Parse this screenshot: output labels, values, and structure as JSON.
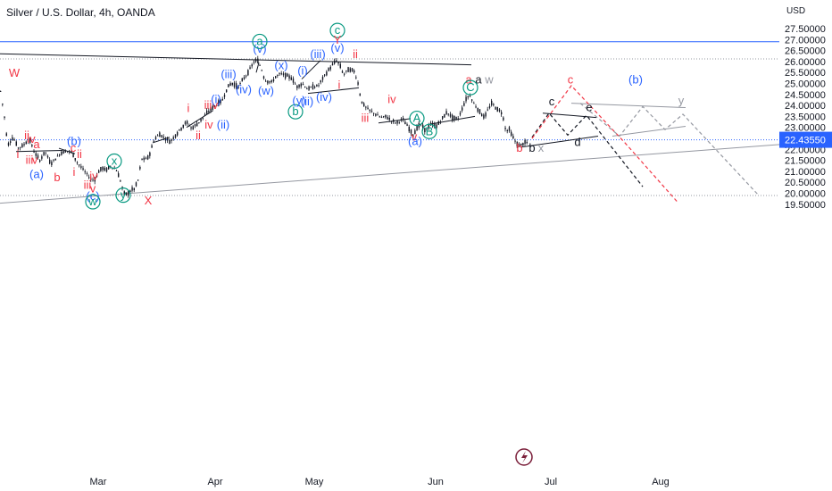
{
  "header": {
    "title": "Silver / U.S. Dollar, 4h, OANDA"
  },
  "chart_data": {
    "type": "candlestick",
    "currency": "USD",
    "ylim": [
      19.45,
      27.7
    ],
    "y_ticks": [
      "27.50000",
      "27.00000",
      "26.50000",
      "26.00000",
      "25.50000",
      "25.00000",
      "24.50000",
      "24.00000",
      "23.50000",
      "23.00000",
      "22.50000",
      "22.00000",
      "21.50000",
      "21.00000",
      "20.50000",
      "20.00000",
      "19.50000"
    ],
    "x_ticks": [
      "Mar",
      "Apr",
      "May",
      "Jun",
      "Jul",
      "Aug"
    ],
    "last_price": "22.43550",
    "last_price_value": 22.4355,
    "horizontal_lines": [
      {
        "value": 26.9,
        "color": "#2962ff"
      },
      {
        "value": 26.12,
        "color": "#9598a1",
        "style": "dotted"
      },
      {
        "value": 19.9,
        "color": "#9598a1",
        "style": "dotted"
      }
    ],
    "colors": {
      "up": "#131722",
      "down": "#131722",
      "blue": "#2962ff",
      "red": "#f23645",
      "green": "#089981",
      "grey": "#9598a1",
      "dark": "#131722"
    },
    "price_path": [
      [
        0,
        24.65
      ],
      [
        4,
        23.6
      ],
      [
        8,
        22.2
      ],
      [
        14,
        22.55
      ],
      [
        20,
        22.05
      ],
      [
        26,
        22.2
      ],
      [
        32,
        22.5
      ],
      [
        38,
        21.85
      ],
      [
        44,
        21.5
      ],
      [
        50,
        21.9
      ],
      [
        56,
        21.35
      ],
      [
        62,
        21.6
      ],
      [
        68,
        21.85
      ],
      [
        74,
        21.95
      ],
      [
        80,
        21.85
      ],
      [
        86,
        21.4
      ],
      [
        92,
        21.1
      ],
      [
        98,
        20.8
      ],
      [
        102,
        20.6
      ],
      [
        106,
        20.65
      ],
      [
        110,
        21.0
      ],
      [
        114,
        21.15
      ],
      [
        118,
        21.05
      ],
      [
        124,
        21.25
      ],
      [
        130,
        21.05
      ],
      [
        134,
        20.6
      ],
      [
        138,
        20.0
      ],
      [
        142,
        19.95
      ],
      [
        146,
        20.15
      ],
      [
        150,
        20.2
      ],
      [
        154,
        20.6
      ],
      [
        158,
        21.55
      ],
      [
        162,
        21.55
      ],
      [
        166,
        21.65
      ],
      [
        172,
        22.45
      ],
      [
        178,
        22.7
      ],
      [
        184,
        22.5
      ],
      [
        190,
        22.35
      ],
      [
        196,
        22.65
      ],
      [
        202,
        22.95
      ],
      [
        208,
        23.25
      ],
      [
        214,
        22.95
      ],
      [
        220,
        23.15
      ],
      [
        226,
        23.4
      ],
      [
        232,
        23.7
      ],
      [
        238,
        23.9
      ],
      [
        244,
        24.1
      ],
      [
        248,
        24.2
      ],
      [
        252,
        24.6
      ],
      [
        256,
        24.95
      ],
      [
        260,
        25.0
      ],
      [
        266,
        24.85
      ],
      [
        272,
        25.2
      ],
      [
        278,
        25.55
      ],
      [
        284,
        26.0
      ],
      [
        288,
        26.05
      ],
      [
        292,
        25.7
      ],
      [
        296,
        25.15
      ],
      [
        300,
        25.1
      ],
      [
        304,
        25.05
      ],
      [
        308,
        25.3
      ],
      [
        314,
        25.45
      ],
      [
        320,
        25.35
      ],
      [
        326,
        25.25
      ],
      [
        332,
        24.85
      ],
      [
        338,
        25.0
      ],
      [
        344,
        24.75
      ],
      [
        350,
        24.85
      ],
      [
        356,
        24.9
      ],
      [
        362,
        25.3
      ],
      [
        368,
        25.65
      ],
      [
        372,
        25.85
      ],
      [
        376,
        26.05
      ],
      [
        380,
        25.85
      ],
      [
        384,
        25.4
      ],
      [
        390,
        25.65
      ],
      [
        396,
        25.55
      ],
      [
        400,
        25.1
      ],
      [
        404,
        24.2
      ],
      [
        408,
        23.95
      ],
      [
        414,
        23.75
      ],
      [
        420,
        23.6
      ],
      [
        426,
        23.45
      ],
      [
        432,
        23.5
      ],
      [
        438,
        23.3
      ],
      [
        444,
        23.2
      ],
      [
        450,
        23.4
      ],
      [
        456,
        23.05
      ],
      [
        462,
        22.65
      ],
      [
        466,
        22.95
      ],
      [
        470,
        23.15
      ],
      [
        476,
        22.85
      ],
      [
        482,
        23.15
      ],
      [
        488,
        23.05
      ],
      [
        494,
        23.35
      ],
      [
        500,
        23.7
      ],
      [
        506,
        23.45
      ],
      [
        512,
        23.35
      ],
      [
        518,
        23.95
      ],
      [
        522,
        24.35
      ],
      [
        526,
        24.45
      ],
      [
        530,
        24.1
      ],
      [
        536,
        23.75
      ],
      [
        542,
        23.45
      ],
      [
        546,
        23.8
      ],
      [
        550,
        24.1
      ],
      [
        556,
        23.85
      ],
      [
        562,
        23.65
      ],
      [
        566,
        22.85
      ],
      [
        570,
        22.9
      ],
      [
        574,
        22.55
      ],
      [
        578,
        22.25
      ],
      [
        582,
        22.15
      ],
      [
        586,
        22.3
      ],
      [
        590,
        22.3
      ]
    ],
    "trendlines": [
      {
        "from": [
          0,
          26.35
        ],
        "to": [
          528,
          25.85
        ],
        "color": "#131722"
      },
      {
        "from": [
          0,
          19.55
        ],
        "to": [
          932,
          22.4
        ],
        "color": "#9598a1"
      },
      {
        "from": [
          18,
          21.9
        ],
        "to": [
          70,
          21.95
        ],
        "color": "#131722"
      },
      {
        "from": [
          66,
          22.05
        ],
        "to": [
          84,
          21.8
        ],
        "color": "#131722"
      },
      {
        "from": [
          171,
          22.3
        ],
        "to": [
          190,
          22.55
        ],
        "color": "#131722"
      },
      {
        "from": [
          209,
          23.0
        ],
        "to": [
          238,
          23.75
        ],
        "color": "#131722"
      },
      {
        "from": [
          287,
          25.5
        ],
        "to": [
          290,
          25.95
        ],
        "color": "#131722"
      },
      {
        "from": [
          338,
          25.2
        ],
        "to": [
          359,
          26.05
        ],
        "color": "#131722"
      },
      {
        "from": [
          345,
          24.55
        ],
        "to": [
          402,
          24.8
        ],
        "color": "#131722"
      },
      {
        "from": [
          424,
          23.2
        ],
        "to": [
          460,
          23.4
        ],
        "color": "#131722"
      },
      {
        "from": [
          482,
          23.15
        ],
        "to": [
          532,
          23.5
        ],
        "color": "#131722"
      },
      {
        "from": [
          583,
          22.1
        ],
        "to": [
          670,
          22.6
        ],
        "color": "#131722"
      },
      {
        "from": [
          608,
          23.65
        ],
        "to": [
          668,
          23.45
        ],
        "color": "#131722"
      },
      {
        "from": [
          640,
          24.1
        ],
        "to": [
          768,
          23.9
        ],
        "color": "#9598a1"
      },
      {
        "from": [
          686,
          22.6
        ],
        "to": [
          768,
          23.05
        ],
        "color": "#9598a1"
      }
    ],
    "projections": [
      {
        "points": [
          [
            596,
            22.55
          ],
          [
            615,
            23.65
          ],
          [
            636,
            22.65
          ],
          [
            657,
            23.55
          ],
          [
            720,
            20.3
          ]
        ],
        "color": "#131722",
        "dash": "4 3"
      },
      {
        "points": [
          [
            596,
            22.5
          ],
          [
            640,
            24.9
          ],
          [
            700,
            22.3
          ],
          [
            760,
            19.55
          ]
        ],
        "color": "#f23645",
        "dash": "4 3"
      },
      {
        "points": [
          [
            650,
            24.1
          ],
          [
            694,
            22.6
          ],
          [
            720,
            23.95
          ],
          [
            745,
            22.9
          ],
          [
            765,
            23.6
          ],
          [
            850,
            19.9
          ]
        ],
        "color": "#9598a1",
        "dash": "4 3"
      }
    ],
    "annotations": [
      {
        "text": "W",
        "x": 16,
        "v": 25.3,
        "c": "red"
      },
      {
        "text": "ii",
        "x": 30,
        "v": 22.45,
        "c": "red"
      },
      {
        "text": "iv",
        "x": 35,
        "v": 22.3,
        "c": "red"
      },
      {
        "text": "a",
        "x": 41,
        "v": 22.05,
        "c": "red"
      },
      {
        "text": "i",
        "x": 20,
        "v": 21.6,
        "c": "red"
      },
      {
        "text": "iii",
        "x": 33,
        "v": 21.35,
        "c": "red"
      },
      {
        "text": "v",
        "x": 39,
        "v": 21.35,
        "c": "red"
      },
      {
        "text": "(a)",
        "x": 41,
        "v": 20.7,
        "c": "blue"
      },
      {
        "text": "b",
        "x": 64,
        "v": 20.55,
        "c": "red"
      },
      {
        "text": "(b)",
        "x": 83,
        "v": 22.2,
        "c": "blue"
      },
      {
        "text": "c",
        "x": 82,
        "v": 21.9,
        "c": "red"
      },
      {
        "text": "ii",
        "x": 89,
        "v": 21.6,
        "c": "red"
      },
      {
        "text": "i",
        "x": 83,
        "v": 20.8,
        "c": "red"
      },
      {
        "text": "iv",
        "x": 105,
        "v": 20.6,
        "c": "red"
      },
      {
        "text": "iii",
        "x": 98,
        "v": 20.2,
        "c": "red"
      },
      {
        "text": "v",
        "x": 104,
        "v": 20.05,
        "c": "red"
      },
      {
        "text": "(c)",
        "x": 104,
        "v": 19.7,
        "c": "blue"
      },
      {
        "text": "w",
        "x": 104,
        "v": 19.45,
        "c": "green",
        "circle": true
      },
      {
        "text": "x",
        "x": 128,
        "v": 21.3,
        "c": "green",
        "circle": true
      },
      {
        "text": "y",
        "x": 138,
        "v": 19.75,
        "c": "green",
        "circle": true
      },
      {
        "text": "X",
        "x": 166,
        "v": 19.5,
        "c": "red"
      },
      {
        "text": "i",
        "x": 211,
        "v": 23.7,
        "c": "red"
      },
      {
        "text": "iii",
        "x": 233,
        "v": 23.85,
        "c": "red"
      },
      {
        "text": "v",
        "x": 241,
        "v": 23.85,
        "c": "red"
      },
      {
        "text": "iv",
        "x": 234,
        "v": 22.95,
        "c": "red"
      },
      {
        "text": "ii",
        "x": 222,
        "v": 22.45,
        "c": "red"
      },
      {
        "text": "(i)",
        "x": 242,
        "v": 24.1,
        "c": "blue"
      },
      {
        "text": "(ii)",
        "x": 250,
        "v": 22.95,
        "c": "blue"
      },
      {
        "text": "(iii)",
        "x": 256,
        "v": 25.25,
        "c": "blue"
      },
      {
        "text": "(iv)",
        "x": 273,
        "v": 24.55,
        "c": "blue"
      },
      {
        "text": "(v)",
        "x": 291,
        "v": 26.4,
        "c": "blue"
      },
      {
        "text": "a",
        "x": 291,
        "v": 26.75,
        "c": "green",
        "circle": true
      },
      {
        "text": "(w)",
        "x": 298,
        "v": 24.5,
        "c": "blue"
      },
      {
        "text": "(x)",
        "x": 315,
        "v": 25.65,
        "c": "blue"
      },
      {
        "text": "b",
        "x": 331,
        "v": 23.55,
        "c": "green",
        "circle": true
      },
      {
        "text": "(y)",
        "x": 335,
        "v": 24.05,
        "c": "blue"
      },
      {
        "text": "(ii)",
        "x": 344,
        "v": 24.0,
        "c": "blue"
      },
      {
        "text": "(i)",
        "x": 339,
        "v": 25.4,
        "c": "blue"
      },
      {
        "text": "(iii)",
        "x": 356,
        "v": 26.15,
        "c": "blue"
      },
      {
        "text": "(iv)",
        "x": 363,
        "v": 24.2,
        "c": "blue"
      },
      {
        "text": "(v)",
        "x": 378,
        "v": 26.45,
        "c": "blue"
      },
      {
        "text": "c",
        "x": 378,
        "v": 27.25,
        "c": "green",
        "circle": true
      },
      {
        "text": "Y",
        "x": 378,
        "v": 26.8,
        "c": "red"
      },
      {
        "text": "ii",
        "x": 398,
        "v": 26.15,
        "c": "red"
      },
      {
        "text": "i",
        "x": 380,
        "v": 24.75,
        "c": "red"
      },
      {
        "text": "iv",
        "x": 439,
        "v": 24.1,
        "c": "red"
      },
      {
        "text": "iii",
        "x": 409,
        "v": 23.25,
        "c": "red"
      },
      {
        "text": "A",
        "x": 467,
        "v": 23.25,
        "c": "green",
        "circle": true
      },
      {
        "text": "B",
        "x": 481,
        "v": 22.65,
        "c": "green",
        "circle": true
      },
      {
        "text": "v",
        "x": 464,
        "v": 22.4,
        "c": "red"
      },
      {
        "text": "(a)",
        "x": 465,
        "v": 22.2,
        "c": "blue"
      },
      {
        "text": "a",
        "x": 525,
        "v": 25.0,
        "c": "red"
      },
      {
        "text": "a",
        "x": 536,
        "v": 25.0,
        "c": "dark"
      },
      {
        "text": "w",
        "x": 548,
        "v": 25.0,
        "c": "grey"
      },
      {
        "text": "C",
        "x": 527,
        "v": 24.65,
        "c": "green",
        "circle": true
      },
      {
        "text": "c",
        "x": 618,
        "v": 24.0,
        "c": "dark"
      },
      {
        "text": "c",
        "x": 639,
        "v": 25.0,
        "c": "red"
      },
      {
        "text": "(b)",
        "x": 712,
        "v": 25.0,
        "c": "blue"
      },
      {
        "text": "e",
        "x": 660,
        "v": 23.75,
        "c": "dark"
      },
      {
        "text": "d",
        "x": 647,
        "v": 22.15,
        "c": "dark"
      },
      {
        "text": "y",
        "x": 763,
        "v": 24.05,
        "c": "grey"
      },
      {
        "text": "b",
        "x": 582,
        "v": 21.9,
        "c": "red"
      },
      {
        "text": "b",
        "x": 596,
        "v": 21.9,
        "c": "dark"
      },
      {
        "text": "x",
        "x": 606,
        "v": 21.9,
        "c": "grey"
      }
    ]
  }
}
